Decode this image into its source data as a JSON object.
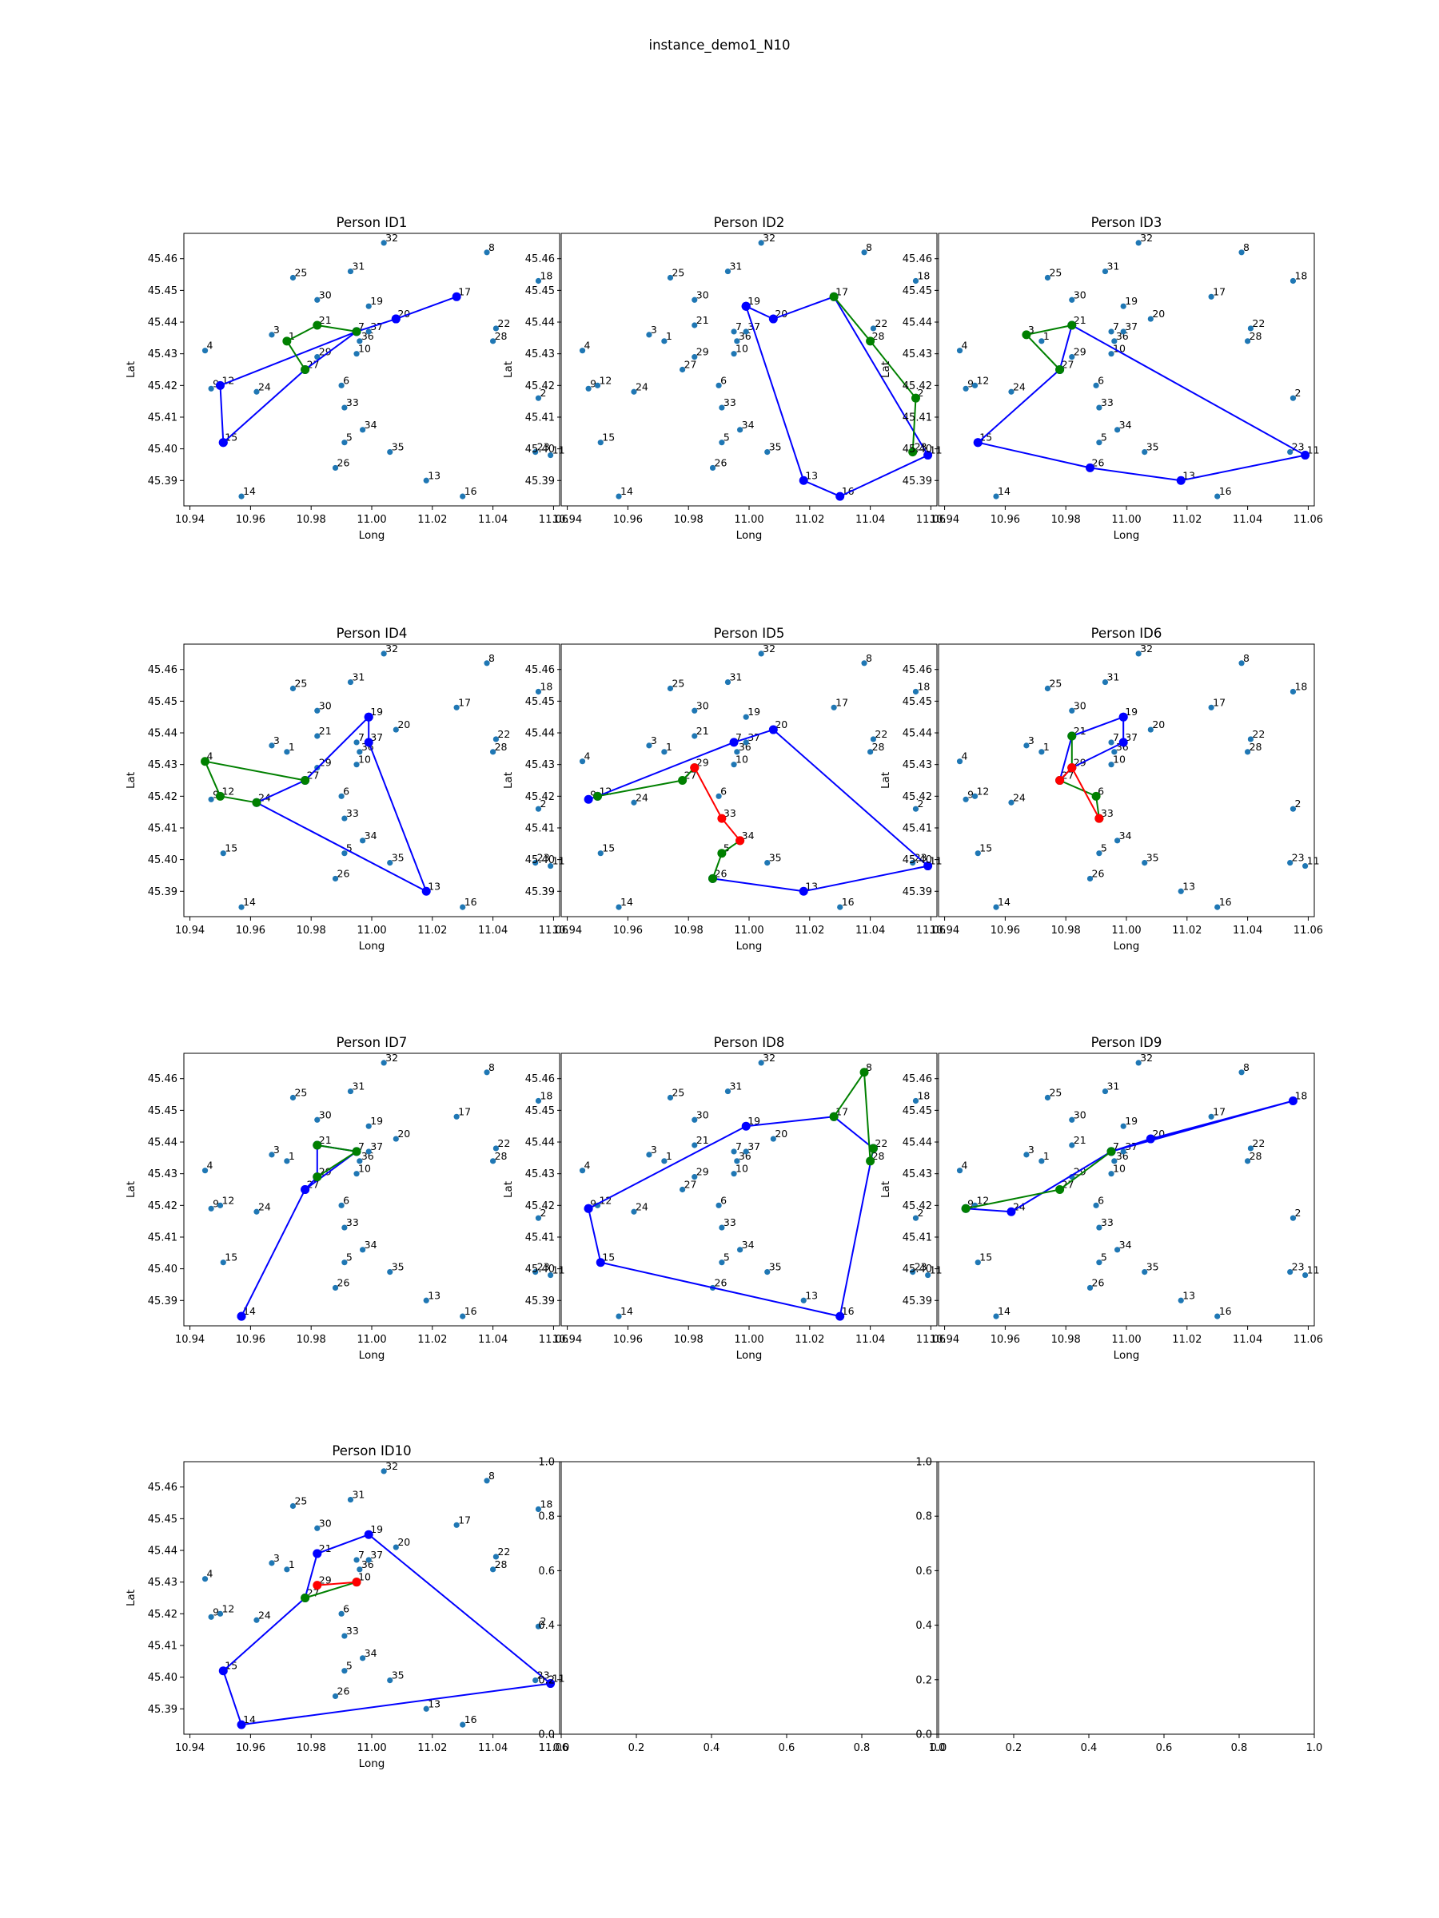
{
  "figure": {
    "title": "instance_demo1_N10"
  },
  "colors": {
    "point": "#1f77b4",
    "route": "#0000ff",
    "green": "#008000",
    "red": "#ff0000"
  },
  "chart_data": {
    "type": "scatter",
    "xlabel": "Long",
    "ylabel": "Lat",
    "xlim": [
      10.938,
      11.062
    ],
    "ylim": [
      45.382,
      45.468
    ],
    "xticks": [
      "10.94",
      "10.96",
      "10.98",
      "11.00",
      "11.02",
      "11.04",
      "11.06"
    ],
    "yticks": [
      "45.39",
      "45.40",
      "45.41",
      "45.42",
      "45.43",
      "45.44",
      "45.45",
      "45.46"
    ],
    "empty_ticks": [
      "0.0",
      "0.2",
      "0.4",
      "0.6",
      "0.8",
      "1.0"
    ],
    "points": [
      {
        "id": "1",
        "x": 10.972,
        "y": 45.434
      },
      {
        "id": "2",
        "x": 11.055,
        "y": 45.416
      },
      {
        "id": "3",
        "x": 10.967,
        "y": 45.436
      },
      {
        "id": "4",
        "x": 10.945,
        "y": 45.431
      },
      {
        "id": "5",
        "x": 10.991,
        "y": 45.402
      },
      {
        "id": "6",
        "x": 10.99,
        "y": 45.42
      },
      {
        "id": "7",
        "x": 10.995,
        "y": 45.437
      },
      {
        "id": "8",
        "x": 11.038,
        "y": 45.462
      },
      {
        "id": "9",
        "x": 10.947,
        "y": 45.419
      },
      {
        "id": "10",
        "x": 10.995,
        "y": 45.43
      },
      {
        "id": "11",
        "x": 11.059,
        "y": 45.398
      },
      {
        "id": "12",
        "x": 10.95,
        "y": 45.42
      },
      {
        "id": "13",
        "x": 11.018,
        "y": 45.39
      },
      {
        "id": "14",
        "x": 10.957,
        "y": 45.385
      },
      {
        "id": "15",
        "x": 10.951,
        "y": 45.402
      },
      {
        "id": "16",
        "x": 11.03,
        "y": 45.385
      },
      {
        "id": "17",
        "x": 11.028,
        "y": 45.448
      },
      {
        "id": "18",
        "x": 11.055,
        "y": 45.453
      },
      {
        "id": "19",
        "x": 10.999,
        "y": 45.445
      },
      {
        "id": "20",
        "x": 11.008,
        "y": 45.441
      },
      {
        "id": "21",
        "x": 10.982,
        "y": 45.439
      },
      {
        "id": "22",
        "x": 11.041,
        "y": 45.438
      },
      {
        "id": "23",
        "x": 11.054,
        "y": 45.399
      },
      {
        "id": "24",
        "x": 10.962,
        "y": 45.418
      },
      {
        "id": "25",
        "x": 10.974,
        "y": 45.454
      },
      {
        "id": "26",
        "x": 10.988,
        "y": 45.394
      },
      {
        "id": "27",
        "x": 10.978,
        "y": 45.425
      },
      {
        "id": "28",
        "x": 11.04,
        "y": 45.434
      },
      {
        "id": "29",
        "x": 10.982,
        "y": 45.429
      },
      {
        "id": "30",
        "x": 10.982,
        "y": 45.447
      },
      {
        "id": "31",
        "x": 10.993,
        "y": 45.456
      },
      {
        "id": "32",
        "x": 11.004,
        "y": 45.465
      },
      {
        "id": "33",
        "x": 10.991,
        "y": 45.413
      },
      {
        "id": "34",
        "x": 10.997,
        "y": 45.406
      },
      {
        "id": "35",
        "x": 11.006,
        "y": 45.399
      },
      {
        "id": "36",
        "x": 10.996,
        "y": 45.434
      },
      {
        "id": "37",
        "x": 10.999,
        "y": 45.437
      }
    ],
    "panels": [
      {
        "title": "Person ID1",
        "route": [
          "15",
          "12",
          "7",
          "20",
          "17",
          "20",
          "7",
          "27",
          "15"
        ],
        "green": [
          [
            "27",
            "1",
            "21",
            "7"
          ]
        ],
        "red": []
      },
      {
        "title": "Person ID2",
        "route": [
          "19",
          "19",
          "20",
          "17",
          "11",
          "16",
          "13",
          "19"
        ],
        "green": [
          [
            "17",
            "28",
            "2",
            "23"
          ]
        ],
        "red": []
      },
      {
        "title": "Person ID3",
        "route": [
          "15",
          "26",
          "13",
          "11",
          "21",
          "27",
          "15"
        ],
        "green": [
          [
            "27",
            "3",
            "21"
          ]
        ],
        "red": []
      },
      {
        "title": "Person ID4",
        "route": [
          "19",
          "37",
          "13",
          "24",
          "27",
          "19"
        ],
        "green": [
          [
            "24",
            "12",
            "4",
            "27"
          ]
        ],
        "red": []
      },
      {
        "title": "Person ID5",
        "route": [
          "9",
          "12",
          "7",
          "20",
          "11",
          "13",
          "26"
        ],
        "green": [
          [
            "12",
            "27",
            "29"
          ],
          [
            "26",
            "5",
            "34"
          ]
        ],
        "red": [
          [
            "29",
            "33",
            "34"
          ]
        ]
      },
      {
        "title": "Person ID6",
        "route": [
          "19",
          "21",
          "27",
          "29",
          "37",
          "19"
        ],
        "green": [
          [
            "21",
            "29"
          ],
          [
            "27",
            "6",
            "33"
          ]
        ],
        "red": [
          [
            "29",
            "27"
          ],
          [
            "29",
            "33"
          ]
        ]
      },
      {
        "title": "Person ID7",
        "route": [
          "14",
          "27",
          "29",
          "21",
          "7",
          "27",
          "14"
        ],
        "green": [
          [
            "21",
            "7",
            "29"
          ]
        ],
        "red": []
      },
      {
        "title": "Person ID8",
        "route": [
          "9",
          "15",
          "16",
          "22",
          "17",
          "19",
          "9"
        ],
        "green": [
          [
            "17",
            "8",
            "28",
            "22"
          ]
        ],
        "red": []
      },
      {
        "title": "Person ID9",
        "route": [
          "9",
          "24",
          "7",
          "20",
          "18",
          "7"
        ],
        "green": [
          [
            "9",
            "27",
            "7"
          ]
        ],
        "red": []
      },
      {
        "title": "Person ID10",
        "route": [
          "21",
          "19",
          "11",
          "14",
          "15",
          "27",
          "21"
        ],
        "green": [
          [
            "27",
            "10"
          ]
        ],
        "red": [
          [
            "29",
            "10"
          ]
        ]
      }
    ]
  }
}
